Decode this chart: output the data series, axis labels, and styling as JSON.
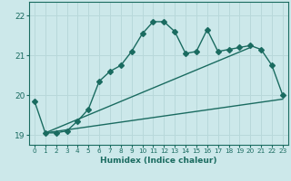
{
  "xlabel": "Humidex (Indice chaleur)",
  "bg_color": "#cce8ea",
  "grid_color": "#b8d8da",
  "line_color": "#1a6b60",
  "xlim": [
    -0.5,
    23.5
  ],
  "ylim": [
    18.75,
    22.35
  ],
  "yticks": [
    19,
    20,
    21,
    22
  ],
  "xticks": [
    0,
    1,
    2,
    3,
    4,
    5,
    6,
    7,
    8,
    9,
    10,
    11,
    12,
    13,
    14,
    15,
    16,
    17,
    18,
    19,
    20,
    21,
    22,
    23
  ],
  "curve1_x": [
    0,
    1,
    2,
    3,
    4,
    5,
    6,
    7,
    8,
    9,
    10,
    11,
    12,
    13,
    14,
    15,
    16,
    17,
    18,
    19,
    20,
    21,
    22,
    23
  ],
  "curve1_y": [
    19.85,
    19.05,
    19.05,
    19.1,
    19.35,
    19.65,
    20.35,
    20.6,
    20.75,
    21.1,
    21.55,
    21.85,
    21.85,
    21.6,
    21.05,
    21.1,
    21.65,
    21.1,
    21.15,
    21.2,
    21.25,
    21.15,
    20.75,
    20.0
  ],
  "curve2_x": [
    1,
    20
  ],
  "curve2_y": [
    19.05,
    21.2
  ],
  "curve3_x": [
    1,
    23
  ],
  "curve3_y": [
    19.05,
    19.9
  ],
  "marker_style": "D",
  "marker_size": 3.0,
  "linewidth": 1.0
}
